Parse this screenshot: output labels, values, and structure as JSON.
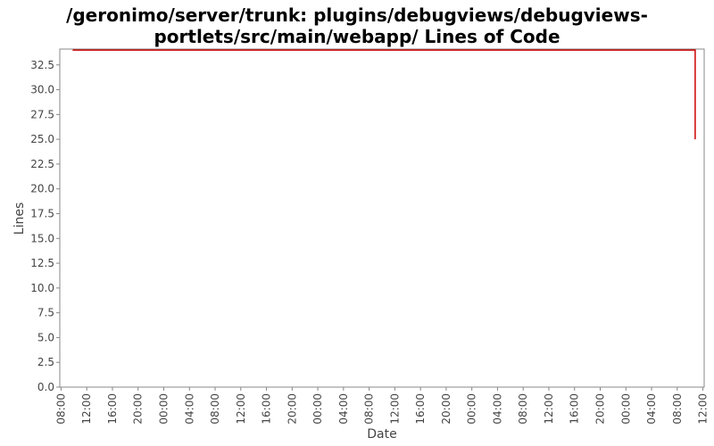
{
  "chart_data": {
    "type": "line",
    "title_lines": [
      "/geronimo/server/trunk: plugins/debugviews/debugviews-",
      "portlets/src/main/webapp/ Lines of Code"
    ],
    "xlabel": "Date",
    "ylabel": "Lines",
    "ylim": [
      0,
      34.1
    ],
    "y_ticks": [
      "0.0",
      "2.5",
      "5.0",
      "7.5",
      "10.0",
      "12.5",
      "15.0",
      "17.5",
      "20.0",
      "22.5",
      "25.0",
      "27.5",
      "30.0",
      "32.5"
    ],
    "x_tick_labels": [
      "08:00",
      "12:00",
      "16:00",
      "20:00",
      "00:00",
      "04:00",
      "08:00",
      "12:00",
      "16:00",
      "20:00",
      "00:00",
      "04:00",
      "08:00",
      "12:00",
      "16:00",
      "20:00",
      "00:00",
      "04:00",
      "08:00",
      "12:00",
      "16:00",
      "20:00",
      "00:00",
      "04:00",
      "08:00",
      "12:00"
    ],
    "x_tick_hours": [
      0,
      4,
      8,
      12,
      16,
      20,
      24,
      28,
      32,
      36,
      40,
      44,
      48,
      52,
      56,
      60,
      64,
      68,
      72,
      76,
      80,
      84,
      88,
      92,
      96,
      100
    ],
    "xlim_hours": [
      -0.2,
      100.2
    ],
    "grid": false,
    "legend": "none",
    "series": [
      {
        "color": "#cc0000",
        "points": [
          {
            "x_hours": 1.8,
            "y": 34
          },
          {
            "x_hours": 98.8,
            "y": 34
          },
          {
            "x_hours": 98.8,
            "y": 25
          }
        ]
      }
    ]
  }
}
